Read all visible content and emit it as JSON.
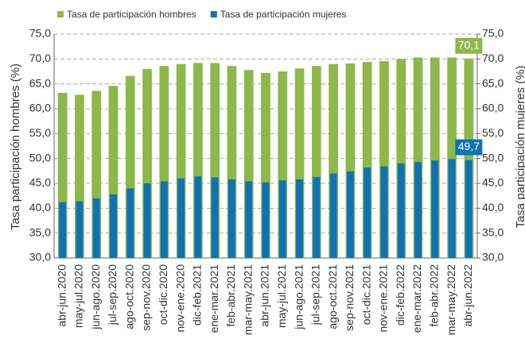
{
  "chart_data": {
    "type": "bar",
    "legend": "top",
    "ylabel": "Tasa participación hombres (%)",
    "y2label": "Tasa participación mujeres (%)",
    "categories": [
      "abr-jun.2020",
      "may-jul.2020",
      "jun-ago.2020",
      "jul-sep.2020",
      "ago-oct.2020",
      "sep-nov.2020",
      "oct-dic.2020",
      "nov-ene.2020",
      "dic-feb.2021",
      "ene-mar.2021",
      "feb-abr.2021",
      "mar-may.2021",
      "abr-jun.2021",
      "may-jul.2021",
      "jun-ago.2021",
      "jul-sep.2021",
      "ago-oct.2021",
      "sep-nov.2021",
      "oct-dic.2021",
      "nov-ene.2021",
      "dic-feb.2022",
      "ene-mar.2022",
      "feb-abr.2022",
      "mar-may.2022",
      "abr-jun.2022"
    ],
    "series": [
      {
        "name": "Tasa de participación hombres",
        "color": "#8db84a",
        "values": [
          63.2,
          62.8,
          63.6,
          64.6,
          66.6,
          68.0,
          68.6,
          69.0,
          69.2,
          69.2,
          68.6,
          67.8,
          67.2,
          67.5,
          68.1,
          68.6,
          69.0,
          69.1,
          69.4,
          69.6,
          70.0,
          70.3,
          70.3,
          70.3,
          70.1
        ],
        "value_labels": [
          null,
          null,
          null,
          null,
          null,
          null,
          null,
          null,
          null,
          null,
          null,
          null,
          null,
          null,
          null,
          null,
          null,
          null,
          null,
          null,
          null,
          null,
          null,
          null,
          "70,1"
        ]
      },
      {
        "name": "Tasa de participación mujeres",
        "color": "#0f72b5",
        "axis": "y2",
        "values": [
          41.2,
          41.4,
          42.0,
          42.8,
          44.0,
          45.0,
          45.4,
          46.0,
          46.4,
          46.2,
          45.8,
          45.4,
          45.2,
          45.6,
          45.8,
          46.3,
          47.0,
          47.4,
          48.2,
          48.4,
          49.0,
          49.3,
          49.6,
          49.9,
          49.7
        ],
        "value_labels": [
          null,
          null,
          null,
          null,
          null,
          null,
          null,
          null,
          null,
          null,
          null,
          null,
          null,
          null,
          null,
          null,
          null,
          null,
          null,
          null,
          null,
          null,
          null,
          null,
          "49,7"
        ]
      }
    ],
    "ylim": [
      30,
      75
    ],
    "yticks": [
      {
        "value": 30,
        "label": "30,0"
      },
      {
        "value": 35,
        "label": "35,0"
      },
      {
        "value": 40,
        "label": "40,0"
      },
      {
        "value": 45,
        "label": "45,0"
      },
      {
        "value": 50,
        "label": "50,0"
      },
      {
        "value": 55,
        "label": "55,0"
      },
      {
        "value": 60,
        "label": "60,0"
      },
      {
        "value": 65,
        "label": "65,0"
      },
      {
        "value": 70,
        "label": "70,0"
      },
      {
        "value": 75,
        "label": "75,0"
      }
    ],
    "y2lim": [
      30,
      75
    ],
    "y2ticks": [
      {
        "value": 30,
        "label": "30,0"
      },
      {
        "value": 35,
        "label": "35,0"
      },
      {
        "value": 40,
        "label": "40,0"
      },
      {
        "value": 45,
        "label": "45,0"
      },
      {
        "value": 50,
        "label": "50,0"
      },
      {
        "value": 55,
        "label": "55,0"
      },
      {
        "value": 60,
        "label": "60,0"
      },
      {
        "value": 65,
        "label": "65,0"
      },
      {
        "value": 70,
        "label": "70,0"
      },
      {
        "value": 75,
        "label": "75,0"
      }
    ],
    "grid": true
  }
}
